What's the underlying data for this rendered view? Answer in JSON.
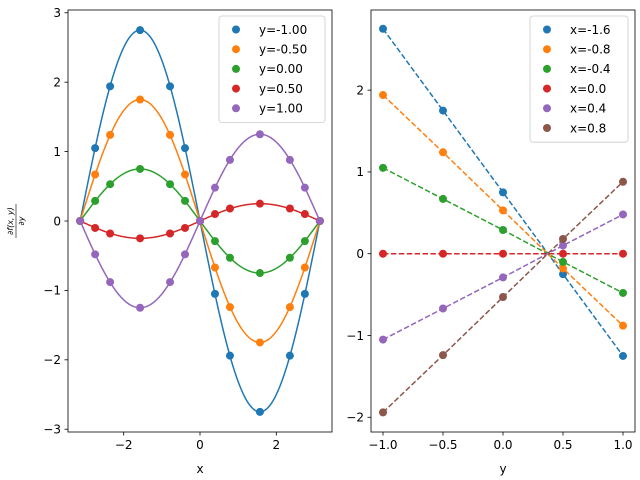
{
  "chart_data": [
    {
      "type": "line+scatter",
      "xlabel": "x",
      "ylabel": "∂f(x, y)/∂y",
      "xlim": [
        -3.46,
        3.46
      ],
      "ylim": [
        -3.04,
        3.04
      ],
      "xticks": [
        -2,
        0,
        2
      ],
      "yticks": [
        -3,
        -2,
        -1,
        0,
        1,
        2,
        3
      ],
      "grid": false,
      "legend_position": "top-right",
      "marker_x": [
        -3.1416,
        -2.7489,
        -2.3562,
        -1.5708,
        -0.7854,
        -0.3927,
        0,
        0.3927,
        0.7854,
        1.5708,
        2.3562,
        2.7489,
        3.1416
      ],
      "series": [
        {
          "name": "y=-1.00",
          "param": -1.0,
          "color": "#1f77b4",
          "values": [
            0,
            1.05,
            1.94,
            2.75,
            1.94,
            1.05,
            0,
            -1.05,
            -1.94,
            -2.75,
            -1.94,
            -1.05,
            0
          ]
        },
        {
          "name": "y=-0.50",
          "param": -0.5,
          "color": "#ff7f0e",
          "values": [
            0,
            0.67,
            1.24,
            1.75,
            1.24,
            0.67,
            0,
            -0.67,
            -1.24,
            -1.75,
            -1.24,
            -0.67,
            0
          ]
        },
        {
          "name": "y=0.00",
          "param": 0.0,
          "color": "#2ca02c",
          "values": [
            0,
            0.29,
            0.53,
            0.75,
            0.53,
            0.29,
            0,
            -0.29,
            -0.53,
            -0.75,
            -0.53,
            -0.29,
            0
          ]
        },
        {
          "name": "y=0.50",
          "param": 0.5,
          "color": "#d62728",
          "values": [
            0,
            -0.1,
            -0.18,
            -0.25,
            -0.18,
            -0.1,
            0,
            0.1,
            0.18,
            0.25,
            0.18,
            0.1,
            0
          ]
        },
        {
          "name": "y=1.00",
          "param": 1.0,
          "color": "#9467bd",
          "values": [
            0,
            -0.48,
            -0.88,
            -1.25,
            -0.88,
            -0.48,
            0,
            0.48,
            0.88,
            1.25,
            0.88,
            0.48,
            0
          ]
        }
      ]
    },
    {
      "type": "line+scatter",
      "xlabel": "y",
      "ylabel": "",
      "xlim": [
        -1.1,
        1.1
      ],
      "ylim": [
        -2.18,
        2.98
      ],
      "xticks": [
        -1.0,
        -0.5,
        0.0,
        0.5,
        1.0
      ],
      "xtick_labels": [
        "−1.0",
        "−0.5",
        "0.0",
        "0.5",
        "1.0"
      ],
      "yticks": [
        -2,
        -1,
        0,
        1,
        2
      ],
      "grid": false,
      "line_style": "dashed",
      "legend_position": "top-right",
      "x": [
        -1.0,
        -0.5,
        0.0,
        0.5,
        1.0
      ],
      "series": [
        {
          "name": "x=-1.6",
          "color": "#1f77b4",
          "values": [
            2.75,
            1.75,
            0.75,
            -0.25,
            -1.25
          ]
        },
        {
          "name": "x=-0.8",
          "color": "#ff7f0e",
          "values": [
            1.94,
            1.24,
            0.53,
            -0.18,
            -0.88
          ]
        },
        {
          "name": "x=-0.4",
          "color": "#2ca02c",
          "values": [
            1.05,
            0.67,
            0.29,
            -0.1,
            -0.48
          ]
        },
        {
          "name": "x=0.0",
          "color": "#d62728",
          "values": [
            0,
            0,
            0,
            0,
            0
          ]
        },
        {
          "name": "x=0.4",
          "color": "#9467bd",
          "values": [
            -1.05,
            -0.67,
            -0.29,
            0.1,
            0.48
          ]
        },
        {
          "name": "x=0.8",
          "color": "#8c564b",
          "values": [
            -1.94,
            -1.24,
            -0.53,
            0.18,
            0.88
          ]
        }
      ]
    }
  ]
}
